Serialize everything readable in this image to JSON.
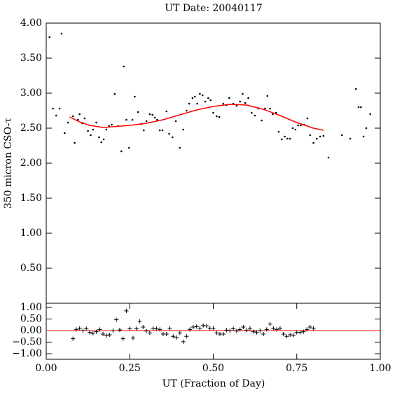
{
  "chart_data": [
    {
      "type": "scatter",
      "title": "UT Date: 20040117",
      "y_label": "350 micron CSO-τ",
      "xlim": [
        0,
        1
      ],
      "ylim": [
        0,
        4
      ],
      "yticks": [
        {
          "value": 0.5,
          "label": "0.50"
        },
        {
          "value": 1,
          "label": "1.00"
        },
        {
          "value": 1.5,
          "label": "1.50"
        },
        {
          "value": 2,
          "label": "2.00"
        },
        {
          "value": 2.5,
          "label": "2.50"
        },
        {
          "value": 3,
          "label": "3.00"
        },
        {
          "value": 3.5,
          "label": "3.50"
        },
        {
          "value": 4,
          "label": "4.00"
        }
      ],
      "series": [
        {
          "mode": "markers",
          "marker": "dot",
          "color": "#000000",
          "x": [
            0.01,
            0.02,
            0.03,
            0.04,
            0.046,
            0.055,
            0.065,
            0.08,
            0.085,
            0.095,
            0.1,
            0.108,
            0.115,
            0.125,
            0.133,
            0.14,
            0.15,
            0.158,
            0.165,
            0.172,
            0.18,
            0.188,
            0.196,
            0.205,
            0.215,
            0.225,
            0.232,
            0.24,
            0.248,
            0.258,
            0.265,
            0.275,
            0.285,
            0.292,
            0.3,
            0.31,
            0.318,
            0.325,
            0.332,
            0.34,
            0.348,
            0.36,
            0.368,
            0.378,
            0.388,
            0.4,
            0.41,
            0.42,
            0.428,
            0.438,
            0.445,
            0.452,
            0.46,
            0.468,
            0.476,
            0.485,
            0.492,
            0.5,
            0.51,
            0.518,
            0.53,
            0.54,
            0.548,
            0.56,
            0.57,
            0.58,
            0.588,
            0.596,
            0.605,
            0.615,
            0.625,
            0.635,
            0.645,
            0.655,
            0.662,
            0.67,
            0.678,
            0.688,
            0.696,
            0.705,
            0.714,
            0.722,
            0.73,
            0.738,
            0.746,
            0.754,
            0.762,
            0.772,
            0.782,
            0.79,
            0.8,
            0.81,
            0.82,
            0.83,
            0.845,
            0.885,
            0.91,
            0.927,
            0.935,
            0.942,
            0.95,
            0.958,
            0.97
          ],
          "values": [
            3.8,
            2.78,
            2.68,
            2.78,
            3.85,
            2.43,
            2.58,
            2.67,
            2.29,
            2.62,
            2.7,
            2.57,
            2.64,
            2.46,
            2.4,
            2.48,
            2.58,
            2.37,
            2.3,
            2.34,
            2.48,
            2.53,
            2.55,
            2.99,
            2.53,
            2.17,
            3.38,
            2.62,
            2.22,
            2.62,
            2.95,
            2.73,
            2.56,
            2.47,
            2.6,
            2.7,
            2.69,
            2.65,
            2.62,
            2.47,
            2.47,
            2.74,
            2.42,
            2.37,
            2.6,
            2.22,
            2.48,
            2.75,
            2.85,
            2.93,
            2.95,
            2.85,
            2.99,
            2.97,
            2.88,
            2.93,
            2.9,
            2.72,
            2.67,
            2.66,
            2.85,
            2.83,
            2.93,
            2.85,
            2.82,
            2.88,
            2.99,
            2.86,
            2.93,
            2.72,
            2.68,
            2.78,
            2.61,
            2.78,
            2.96,
            2.78,
            2.7,
            2.72,
            2.45,
            2.34,
            2.38,
            2.35,
            2.35,
            2.5,
            2.48,
            2.54,
            2.54,
            2.55,
            2.64,
            2.4,
            2.29,
            2.35,
            2.38,
            2.39,
            2.08,
            2.4,
            2.35,
            3.06,
            2.8,
            2.8,
            2.38,
            2.5,
            2.7
          ]
        },
        {
          "mode": "line",
          "color": "#ff0000",
          "x": [
            0.07,
            0.1,
            0.13,
            0.17,
            0.2,
            0.25,
            0.3,
            0.35,
            0.4,
            0.45,
            0.5,
            0.55,
            0.6,
            0.65,
            0.7,
            0.75,
            0.8,
            0.83
          ],
          "values": [
            2.66,
            2.59,
            2.54,
            2.51,
            2.52,
            2.54,
            2.57,
            2.62,
            2.69,
            2.76,
            2.81,
            2.84,
            2.83,
            2.77,
            2.68,
            2.58,
            2.5,
            2.47
          ]
        }
      ]
    },
    {
      "type": "scatter",
      "x_label": "UT (Fraction of Day)",
      "xlim": [
        0,
        1
      ],
      "ylim": [
        -1.24,
        1.18
      ],
      "xticks": [
        {
          "value": 0,
          "label": "0.00"
        },
        {
          "value": 0.25,
          "label": "0.25"
        },
        {
          "value": 0.5,
          "label": "0.50"
        },
        {
          "value": 0.75,
          "label": "0.75"
        },
        {
          "value": 1,
          "label": "1.00"
        }
      ],
      "yticks": [
        {
          "value": -1,
          "label": "−1.00"
        },
        {
          "value": -0.5,
          "label": "−0.50"
        },
        {
          "value": 0,
          "label": "0.00"
        },
        {
          "value": 0.5,
          "label": "0.50"
        },
        {
          "value": 1,
          "label": "1.00"
        }
      ],
      "reference_line": 0,
      "reference_color": "#ff0000",
      "series": [
        {
          "mode": "markers",
          "marker": "plus",
          "color": "#000000",
          "x": [
            0.08,
            0.09,
            0.1,
            0.11,
            0.12,
            0.13,
            0.14,
            0.15,
            0.16,
            0.17,
            0.18,
            0.19,
            0.2,
            0.21,
            0.22,
            0.23,
            0.24,
            0.25,
            0.26,
            0.27,
            0.28,
            0.29,
            0.3,
            0.31,
            0.32,
            0.33,
            0.34,
            0.35,
            0.36,
            0.37,
            0.38,
            0.39,
            0.4,
            0.41,
            0.42,
            0.43,
            0.44,
            0.45,
            0.46,
            0.47,
            0.48,
            0.49,
            0.5,
            0.51,
            0.52,
            0.53,
            0.54,
            0.55,
            0.56,
            0.57,
            0.58,
            0.59,
            0.6,
            0.61,
            0.62,
            0.63,
            0.64,
            0.65,
            0.66,
            0.67,
            0.68,
            0.69,
            0.7,
            0.71,
            0.72,
            0.73,
            0.74,
            0.75,
            0.76,
            0.77,
            0.78,
            0.79,
            0.8
          ],
          "values": [
            -0.35,
            0.05,
            0.1,
            0.0,
            0.08,
            -0.08,
            -0.12,
            -0.05,
            0.05,
            -0.15,
            -0.22,
            -0.18,
            0.0,
            0.47,
            0.03,
            -0.35,
            0.85,
            0.08,
            -0.32,
            0.08,
            0.4,
            0.15,
            -0.02,
            -0.1,
            0.1,
            0.08,
            0.05,
            -0.15,
            -0.15,
            0.1,
            -0.25,
            -0.3,
            -0.1,
            -0.48,
            -0.25,
            0.05,
            0.15,
            0.17,
            0.1,
            0.22,
            0.2,
            0.1,
            0.1,
            -0.1,
            -0.15,
            -0.15,
            0.02,
            0.0,
            0.08,
            -0.02,
            0.05,
            0.15,
            0.02,
            0.1,
            -0.05,
            -0.08,
            0.0,
            -0.15,
            0.05,
            0.28,
            0.1,
            0.05,
            0.1,
            -0.15,
            -0.25,
            -0.18,
            -0.2,
            -0.08,
            -0.08,
            -0.05,
            0.05,
            0.15,
            0.1
          ]
        }
      ]
    }
  ]
}
